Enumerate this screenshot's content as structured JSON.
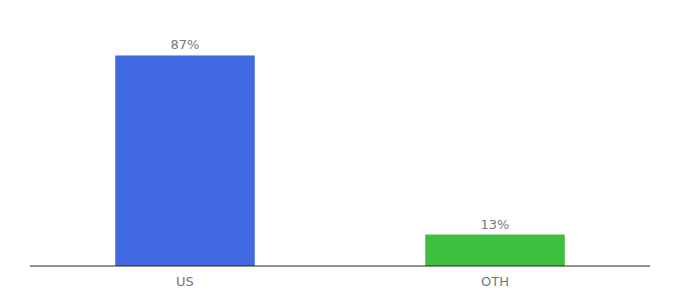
{
  "chart_data": {
    "type": "bar",
    "categories": [
      "US",
      "OTH"
    ],
    "values": [
      87,
      13
    ],
    "value_labels": [
      "87%",
      "13%"
    ],
    "colors": [
      "#4169e1",
      "#3dbf3d"
    ],
    "ylim": [
      0,
      100
    ],
    "data_labels": true,
    "tick_labels": "x"
  }
}
